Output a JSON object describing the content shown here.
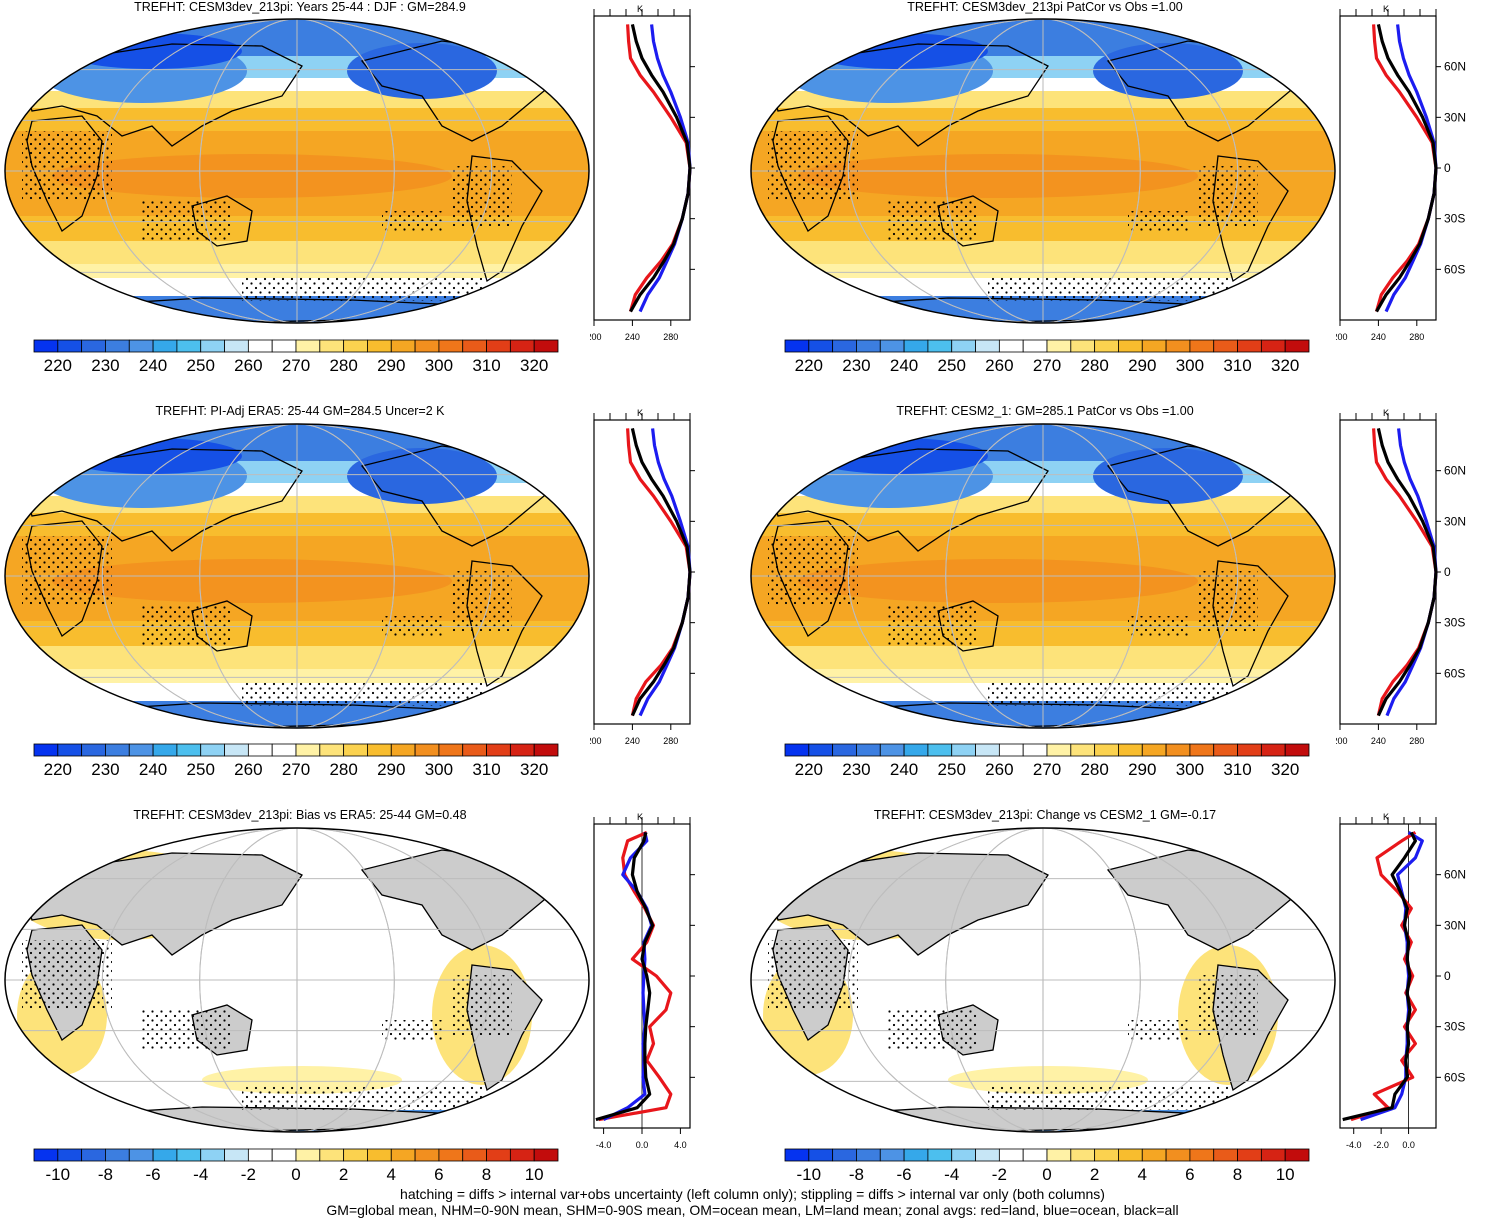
{
  "panels": [
    {
      "title": "TREFHT: CESM3dev_213pi: Years 25-44 : DJF : GM=284.9",
      "kind": "abs",
      "stipple": true
    },
    {
      "title": "TREFHT: CESM3dev_213pi PatCor vs Obs =1.00",
      "kind": "abs",
      "stipple": true
    },
    {
      "title": "TREFHT: PI-Adj ERA5: 25-44 GM=284.5 Uncer=2 K",
      "kind": "abs",
      "stipple": true
    },
    {
      "title": "TREFHT: CESM2_1: GM=285.1 PatCor vs Obs =1.00",
      "kind": "abs",
      "stipple": true
    },
    {
      "title": "TREFHT: CESM3dev_213pi: Bias vs ERA5: 25-44 GM=0.48",
      "kind": "diff",
      "stipple": true
    },
    {
      "title": "TREFHT: CESM3dev_213pi: Change vs CESM2_1 GM=-0.17",
      "kind": "diff",
      "stipple": true
    }
  ],
  "colorbars": {
    "abs": {
      "labels": [
        "220",
        "230",
        "240",
        "250",
        "260",
        "270",
        "280",
        "290",
        "300",
        "310",
        "320"
      ],
      "colors": [
        "#0533f0",
        "#1550e6",
        "#2a67e0",
        "#3c7ee0",
        "#4d93e5",
        "#35a8ea",
        "#4cbfee",
        "#8ed2f4",
        "#c7e6f6",
        "#ffffff",
        "#ffffff",
        "#fff2a6",
        "#fde37a",
        "#fbd24f",
        "#f8bd2e",
        "#f5a623",
        "#f28f1f",
        "#ef761a",
        "#e95b19",
        "#e23e17",
        "#d62314",
        "#c20c0c"
      ]
    },
    "diff": {
      "labels": [
        "-10",
        "-8",
        "-6",
        "-4",
        "-2",
        "0",
        "2",
        "4",
        "6",
        "8",
        "10"
      ],
      "colors": [
        "#0533f0",
        "#1550e6",
        "#2a67e0",
        "#3c7ee0",
        "#4d93e5",
        "#35a8ea",
        "#4cbfee",
        "#8ed2f4",
        "#c7e6f6",
        "#ffffff",
        "#ffffff",
        "#fff2a6",
        "#fde37a",
        "#fbd24f",
        "#f8bd2e",
        "#f5a623",
        "#f28f1f",
        "#ef761a",
        "#e95b19",
        "#e23e17",
        "#d62314",
        "#c20c0c"
      ]
    }
  },
  "zonal": {
    "unit": "K",
    "lat_labels": [
      "60N",
      "30N",
      "0",
      "30S",
      "60S"
    ],
    "lat_values": [
      60,
      30,
      0,
      -30,
      -60
    ],
    "abs_ticks": [
      "200",
      "240",
      "280"
    ],
    "abs_xlim": [
      200,
      300
    ],
    "diff_ticks_left": [
      "-4.0",
      "0.0",
      "4.0"
    ],
    "diff_ticks_right": [
      "-4.0",
      "-2.0",
      "0.0"
    ],
    "series_colors": {
      "land": "#e8161b",
      "ocean": "#1c1cf0",
      "all": "#000000"
    }
  },
  "chart_data": [
    {
      "type": "line",
      "title": "TREFHT: CESM3dev_213pi: Years 25-44 : DJF : GM=284.9",
      "xlabel": "K",
      "xlim": [
        200,
        300
      ],
      "ylim": [
        -90,
        90
      ],
      "lat": [
        -85,
        -75,
        -65,
        -55,
        -45,
        -30,
        -15,
        0,
        15,
        30,
        45,
        55,
        65,
        75,
        85
      ],
      "series": [
        {
          "name": "land",
          "values": [
            238,
            243,
            255,
            270,
            282,
            292,
            298,
            300,
            296,
            280,
            262,
            248,
            238,
            236,
            235
          ]
        },
        {
          "name": "ocean",
          "values": [
            248,
            256,
            268,
            276,
            284,
            292,
            298,
            300,
            298,
            290,
            280,
            272,
            266,
            262,
            260
          ]
        },
        {
          "name": "all",
          "values": [
            238,
            248,
            262,
            273,
            283,
            292,
            298,
            300,
            297,
            286,
            272,
            260,
            250,
            244,
            240
          ]
        }
      ]
    },
    {
      "type": "line",
      "title": "TREFHT: CESM3dev_213pi PatCor vs Obs =1.00",
      "xlabel": "K",
      "xlim": [
        200,
        300
      ],
      "ylim": [
        -90,
        90
      ],
      "lat": [
        -85,
        -75,
        -65,
        -55,
        -45,
        -30,
        -15,
        0,
        15,
        30,
        45,
        55,
        65,
        75,
        85
      ],
      "series": [
        {
          "name": "land",
          "values": [
            238,
            243,
            255,
            270,
            282,
            292,
            298,
            300,
            296,
            280,
            262,
            248,
            238,
            236,
            235
          ]
        },
        {
          "name": "ocean",
          "values": [
            248,
            256,
            268,
            276,
            284,
            292,
            298,
            300,
            298,
            290,
            280,
            272,
            266,
            262,
            260
          ]
        },
        {
          "name": "all",
          "values": [
            238,
            248,
            262,
            273,
            283,
            292,
            298,
            300,
            297,
            286,
            272,
            260,
            250,
            244,
            240
          ]
        }
      ]
    },
    {
      "type": "line",
      "title": "TREFHT: PI-Adj ERA5: 25-44 GM=284.5 Uncer=2 K",
      "xlabel": "K",
      "xlim": [
        200,
        300
      ],
      "ylim": [
        -90,
        90
      ],
      "lat": [
        -85,
        -75,
        -65,
        -55,
        -45,
        -30,
        -15,
        0,
        15,
        30,
        45,
        55,
        65,
        75,
        85
      ],
      "series": [
        {
          "name": "land",
          "values": [
            240,
            244,
            254,
            270,
            282,
            292,
            298,
            300,
            296,
            280,
            262,
            248,
            238,
            236,
            235
          ]
        },
        {
          "name": "ocean",
          "values": [
            248,
            256,
            268,
            276,
            284,
            292,
            298,
            300,
            298,
            290,
            281,
            273,
            267,
            263,
            261
          ]
        },
        {
          "name": "all",
          "values": [
            240,
            248,
            262,
            273,
            283,
            292,
            298,
            300,
            297,
            286,
            272,
            260,
            250,
            244,
            240
          ]
        }
      ]
    },
    {
      "type": "line",
      "title": "TREFHT: CESM2_1: GM=285.1 PatCor vs Obs =1.00",
      "xlabel": "K",
      "xlim": [
        200,
        300
      ],
      "ylim": [
        -90,
        90
      ],
      "lat": [
        -85,
        -75,
        -65,
        -55,
        -45,
        -30,
        -15,
        0,
        15,
        30,
        45,
        55,
        65,
        75,
        85
      ],
      "series": [
        {
          "name": "land",
          "values": [
            240,
            244,
            255,
            270,
            282,
            292,
            298,
            300,
            296,
            280,
            262,
            248,
            238,
            236,
            235
          ]
        },
        {
          "name": "ocean",
          "values": [
            249,
            256,
            268,
            276,
            284,
            292,
            298,
            300,
            298,
            290,
            281,
            273,
            267,
            263,
            261
          ]
        },
        {
          "name": "all",
          "values": [
            240,
            248,
            262,
            273,
            283,
            292,
            298,
            300,
            297,
            286,
            272,
            260,
            250,
            244,
            240
          ]
        }
      ]
    },
    {
      "type": "line",
      "title": "TREFHT: CESM3dev_213pi: Bias vs ERA5: 25-44 GM=0.48",
      "xlabel": "K",
      "xlim": [
        -5,
        5
      ],
      "ylim": [
        -90,
        90
      ],
      "lat": [
        -85,
        -78,
        -70,
        -60,
        -50,
        -40,
        -30,
        -20,
        -10,
        0,
        10,
        20,
        30,
        40,
        50,
        60,
        70,
        80,
        85
      ],
      "series": [
        {
          "name": "land",
          "values": [
            -4.5,
            2.5,
            3.0,
            1.8,
            0.5,
            1.2,
            0.8,
            2.5,
            3.0,
            1.5,
            -1.0,
            0.5,
            1.2,
            0.3,
            -0.8,
            -1.8,
            -2.0,
            -1.5,
            0.5
          ]
        },
        {
          "name": "ocean",
          "values": [
            -4.0,
            -1.5,
            0.3,
            0.1,
            0.2,
            0.1,
            0.3,
            0.2,
            0.1,
            0.2,
            0.3,
            0.2,
            1.0,
            0.5,
            -0.5,
            -2.0,
            -1.2,
            0.5,
            0.3
          ]
        },
        {
          "name": "all",
          "values": [
            -4.8,
            -0.5,
            0.8,
            0.4,
            0.3,
            0.3,
            0.4,
            0.6,
            0.8,
            0.5,
            0.0,
            0.3,
            1.1,
            0.4,
            -0.5,
            -1.0,
            -0.8,
            0.2,
            0.4
          ]
        }
      ]
    },
    {
      "type": "line",
      "title": "TREFHT: CESM3dev_213pi: Change vs CESM2_1 GM=-0.17",
      "xlabel": "K",
      "xlim": [
        -5,
        2
      ],
      "ylim": [
        -90,
        90
      ],
      "lat": [
        -85,
        -78,
        -70,
        -60,
        -50,
        -40,
        -30,
        -20,
        -10,
        0,
        10,
        20,
        30,
        40,
        50,
        60,
        70,
        80,
        85
      ],
      "series": [
        {
          "name": "land",
          "values": [
            -4.2,
            -1.5,
            -2.5,
            0.3,
            -0.5,
            0.5,
            -0.3,
            0.5,
            -0.2,
            0.3,
            -0.3,
            0.2,
            -0.5,
            0.2,
            -0.8,
            -2.0,
            -2.3,
            -0.5,
            0.5
          ]
        },
        {
          "name": "ocean",
          "values": [
            -3.5,
            -1.0,
            -0.5,
            -0.2,
            -0.2,
            -0.1,
            -0.1,
            0.0,
            -0.1,
            0.0,
            -0.1,
            -0.1,
            -0.3,
            -0.2,
            -0.5,
            -0.8,
            0.5,
            1.0,
            0.0
          ]
        },
        {
          "name": "all",
          "values": [
            -4.8,
            -1.2,
            -1.0,
            -0.1,
            -0.2,
            0.0,
            -0.1,
            0.1,
            -0.1,
            0.1,
            -0.1,
            0.0,
            -0.3,
            -0.1,
            -0.6,
            -1.2,
            -0.3,
            0.5,
            0.2
          ]
        }
      ]
    }
  ],
  "footer": {
    "line1": "hatching = diffs > internal var+obs uncertainty (left column only); stippling = diffs > internal var only (both columns)",
    "line2": "GM=global mean, NHM=0-90N mean, SHM=0-90S mean, OM=ocean mean, LM=land mean; zonal avgs: red=land, blue=ocean, black=all"
  }
}
